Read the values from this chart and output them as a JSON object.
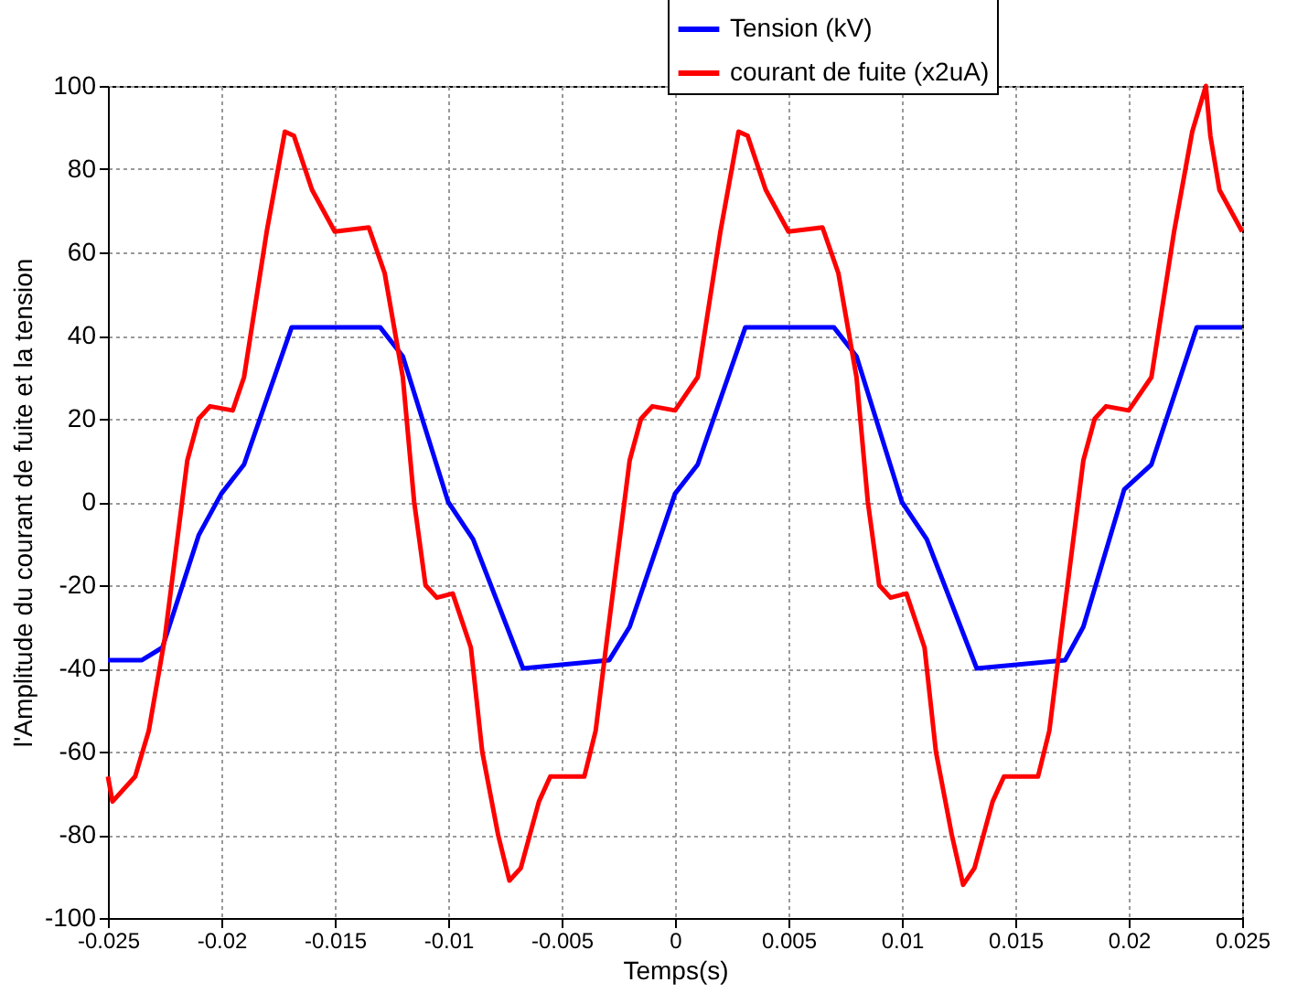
{
  "chart_data": {
    "type": "line",
    "xlabel": "Temps(s)",
    "ylabel": "l'Amplitude du courant de fuite et la tension",
    "xlim": [
      -0.025,
      0.025
    ],
    "ylim": [
      -100,
      100
    ],
    "xticks": [
      -0.025,
      -0.02,
      -0.015,
      -0.01,
      -0.005,
      0,
      0.005,
      0.01,
      0.015,
      0.02,
      0.025
    ],
    "yticks": [
      -100,
      -80,
      -60,
      -40,
      -20,
      0,
      20,
      40,
      60,
      80,
      100
    ],
    "grid": true,
    "legend": "top right",
    "line_style": "solid",
    "marker": "none",
    "series": [
      {
        "name": "Tension (kV)",
        "color": "#0000ff",
        "x": [
          -0.025,
          -0.0235,
          -0.0226,
          -0.021,
          -0.02,
          -0.019,
          -0.0169,
          -0.013,
          -0.012,
          -0.01,
          -0.0089,
          -0.0067,
          -0.0029,
          -0.002,
          0,
          0.001,
          0.0031,
          0.007,
          0.008,
          0.01,
          0.0111,
          0.0133,
          0.0172,
          0.018,
          0.0198,
          0.021,
          0.023,
          0.025
        ],
        "values": [
          -38,
          -38,
          -35,
          -8,
          2,
          9,
          42,
          42,
          35,
          0,
          -9,
          -40,
          -38,
          -30,
          2,
          9,
          42,
          42,
          35,
          0,
          -9,
          -40,
          -38,
          -30,
          3,
          9,
          42,
          42
        ]
      },
      {
        "name": "courant de fuite (x2uA)",
        "color": "#ff0000",
        "x": [
          -0.025,
          -0.0248,
          -0.0238,
          -0.0232,
          -0.0225,
          -0.0215,
          -0.021,
          -0.0205,
          -0.0195,
          -0.019,
          -0.018,
          -0.0172,
          -0.0168,
          -0.016,
          -0.015,
          -0.0135,
          -0.0128,
          -0.012,
          -0.0115,
          -0.011,
          -0.0105,
          -0.0098,
          -0.009,
          -0.0085,
          -0.0078,
          -0.0073,
          -0.0068,
          -0.006,
          -0.0055,
          -0.004,
          -0.0035,
          -0.003,
          -0.002,
          -0.0015,
          -0.001,
          0,
          0.001,
          0.002,
          0.0028,
          0.0032,
          0.004,
          0.005,
          0.0065,
          0.0072,
          0.008,
          0.0085,
          0.009,
          0.0095,
          0.0102,
          0.011,
          0.0115,
          0.0122,
          0.0127,
          0.0132,
          0.014,
          0.0145,
          0.016,
          0.0165,
          0.017,
          0.018,
          0.0185,
          0.019,
          0.02,
          0.021,
          0.022,
          0.0228,
          0.0234,
          0.0236,
          0.024,
          0.025
        ],
        "values": [
          -66,
          -72,
          -66,
          -55,
          -33,
          10,
          20,
          23,
          22,
          30,
          65,
          89,
          88,
          75,
          65,
          66,
          55,
          30,
          0,
          -20,
          -23,
          -22,
          -35,
          -60,
          -80,
          -91,
          -88,
          -72,
          -66,
          -66,
          -55,
          -33,
          10,
          20,
          23,
          22,
          30,
          65,
          89,
          88,
          75,
          65,
          66,
          55,
          30,
          0,
          -20,
          -23,
          -22,
          -35,
          -60,
          -80,
          -92,
          -88,
          -72,
          -66,
          -66,
          -55,
          -33,
          10,
          20,
          23,
          22,
          30,
          65,
          89,
          100,
          88,
          75,
          65
        ]
      }
    ]
  }
}
